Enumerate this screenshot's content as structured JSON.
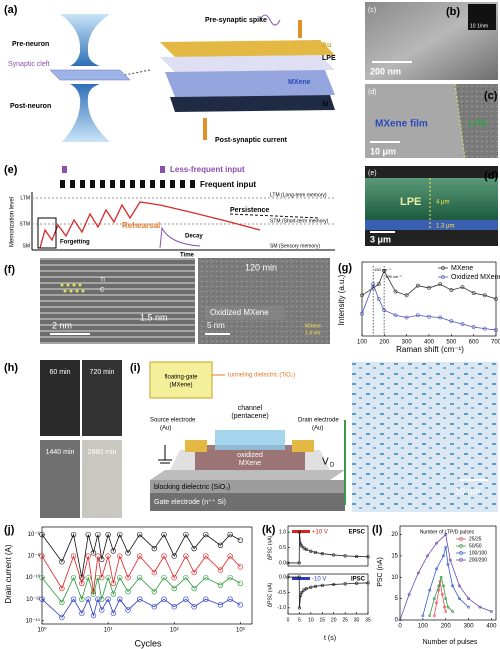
{
  "panel_labels": {
    "a": "(a)",
    "b": "(b)",
    "c": "(c)",
    "d": "(d)",
    "e": "(e)",
    "f": "(f)",
    "g": "(g)",
    "h": "(h)",
    "i": "(i)",
    "j": "(j)",
    "k": "(k)",
    "l": "(l)"
  },
  "a": {
    "pre_neuron": "Pre-neuron",
    "synaptic_cleft": "Synaptic cleft",
    "post_neuron": "Post-neuron",
    "pre_spike": "Pre-synaptic spike",
    "au": "Au",
    "lpe": "LPE",
    "mxene": "MXene",
    "si": "Si",
    "post_current": "Post-synaptic current"
  },
  "b": {
    "sub": "(c)",
    "scale": "200 nm",
    "fft": "10 1/nm"
  },
  "c": {
    "sub": "(d)",
    "film": "MXene film",
    "lpe": "LPE",
    "scale": "10 μm"
  },
  "d": {
    "sub": "(e)",
    "lpe": "LPE",
    "thick_lpe": "4 μm",
    "thick_mx": "1.3 μm",
    "scale": "3 μm"
  },
  "e": {
    "less": "Less-frequent input",
    "frequent": "Frequent input",
    "ylabel": "Memorization level",
    "levels": [
      "LTM",
      "STM",
      "SM"
    ],
    "ltm": "LTM (Long-term memory)",
    "stm": "STM (Short-term memory)",
    "sm": "SM (Sensory memory)",
    "persistence": "Persistence",
    "rehearsal": "Rehearsal",
    "forgetting": "Forgetting",
    "decay": "Decay",
    "time": "Time"
  },
  "f": {
    "ti": "Ti",
    "c": "C",
    "spacing1": "1.5 nm",
    "scale1": "2 nm",
    "time": "120 min",
    "oxidized": "Oxidized MXene",
    "scale2": "5 nm",
    "mxene": "MXene",
    "spacing2": "1.4 nm"
  },
  "g": {
    "type": "line",
    "markers": true,
    "xlabel": "Raman shift (cm⁻¹)",
    "ylabel": "Intensity (a.u.)",
    "xlim": [
      100,
      700
    ],
    "xticks": [
      100,
      200,
      300,
      400,
      500,
      600,
      700
    ],
    "ylim": [
      0,
      1
    ],
    "legend": "upper right",
    "x": [
      100,
      150,
      175,
      199,
      250,
      300,
      350,
      400,
      450,
      500,
      550,
      600,
      650,
      700
    ],
    "series": [
      {
        "name": "MXene",
        "color": "#333333",
        "values": [
          0.55,
          0.65,
          0.7,
          0.88,
          0.6,
          0.55,
          0.68,
          0.65,
          0.7,
          0.62,
          0.66,
          0.58,
          0.55,
          0.5
        ]
      },
      {
        "name": "Oxidized MXene",
        "color": "#4a55b8",
        "values": [
          0.3,
          0.7,
          0.5,
          0.35,
          0.28,
          0.25,
          0.28,
          0.26,
          0.25,
          0.2,
          0.16,
          0.12,
          0.1,
          0.08
        ]
      }
    ],
    "peaks": [
      {
        "x": 150,
        "label": "150 cm⁻¹"
      },
      {
        "x": 199,
        "label": "199 cm⁻¹"
      }
    ]
  },
  "h": {
    "times": [
      "60 min",
      "720 min",
      "1440 min",
      "2880 min"
    ]
  },
  "i": {
    "floating_gate": [
      "floating-gate",
      "(MXene)"
    ],
    "tunneling": "tunneling dielectric (TiO₂)",
    "channel": [
      "channel",
      "(pentacene)"
    ],
    "source": [
      "Source electrode",
      "(Au)"
    ],
    "drain": [
      "Drain electrode",
      "(Au)"
    ],
    "oxidized": [
      "oxidized",
      "MXene"
    ],
    "vd": "V",
    "vd_sub": "D",
    "blocking": "blocking dielectric (SiO₂)",
    "gate": "Gate electrode (n⁺⁺ Si)",
    "scale": "10 μm"
  },
  "j": {
    "type": "line",
    "markers": true,
    "xlog": true,
    "ylog": true,
    "xlabel": "Cycles",
    "ylabel": "Drain current (A)",
    "xlim": [
      1,
      1500
    ],
    "ylim": [
      5e-15,
      5e-06
    ],
    "xticks": [
      {
        "value": 1,
        "label": "10⁰"
      },
      {
        "value": 10,
        "label": "10¹"
      },
      {
        "value": 100,
        "label": "10²"
      },
      {
        "value": 1000,
        "label": "10³"
      }
    ],
    "yticks": [
      {
        "value": 1e-14,
        "label": "10⁻¹⁴"
      },
      {
        "value": 1e-12,
        "label": "10⁻¹²"
      },
      {
        "value": 1e-10,
        "label": "10⁻¹⁰"
      },
      {
        "value": 1e-08,
        "label": "10⁻⁸"
      },
      {
        "value": 1e-06,
        "label": "10⁻⁶"
      }
    ],
    "x": [
      1,
      2,
      3,
      4,
      5,
      6,
      7,
      8,
      10,
      12,
      15,
      20,
      30,
      50,
      70,
      100,
      150,
      200,
      300,
      500,
      700,
      1000
    ],
    "series": [
      {
        "color": "#111111",
        "values": [
          1e-06,
          3e-09,
          1e-06,
          1e-10,
          1e-06,
          2e-08,
          1e-06,
          5e-09,
          1e-06,
          3e-08,
          1e-06,
          2e-08,
          1e-06,
          5e-08,
          1e-06,
          1e-08,
          1e-06,
          5e-08,
          1e-06,
          1e-07,
          1e-06,
          3e-07
        ]
      },
      {
        "color": "#e02020",
        "values": [
          1e-08,
          1e-11,
          1e-08,
          3e-11,
          1e-08,
          5e-12,
          1e-08,
          1e-10,
          1e-08,
          3e-11,
          1e-08,
          1e-10,
          1e-08,
          3e-10,
          1e-08,
          1e-10,
          1e-08,
          3e-10,
          1e-08,
          5e-10,
          1e-08,
          1e-09
        ]
      },
      {
        "color": "#2a9a3a",
        "values": [
          1e-10,
          5e-13,
          1e-10,
          1e-12,
          1e-10,
          3e-12,
          1e-10,
          1e-12,
          1e-10,
          3e-12,
          1e-10,
          5e-12,
          1e-10,
          5e-12,
          1e-10,
          1e-11,
          1e-10,
          1e-11,
          1e-10,
          2e-11,
          1e-10,
          3e-11
        ]
      },
      {
        "color": "#2a3ac8",
        "values": [
          1e-12,
          2e-14,
          1e-12,
          5e-14,
          1e-12,
          3e-14,
          1e-12,
          1e-13,
          1e-12,
          5e-14,
          1e-12,
          1e-13,
          1e-12,
          2e-13,
          1e-12,
          2e-13,
          1e-12,
          2e-13,
          1e-12,
          3e-13,
          1e-12,
          3e-13
        ]
      }
    ]
  },
  "k": {
    "xlabel": "t (s)",
    "epsc": {
      "type": "line",
      "markers": true,
      "label": "EPSC",
      "pulse": "+10 V",
      "ylabel": "ΔPSC (nA)",
      "xlim": [
        0,
        35
      ],
      "ylim": [
        -0.1,
        1.2
      ],
      "yticks": [
        {
          "value": 0,
          "label": "0.0"
        },
        0.5,
        {
          "value": 1,
          "label": "1.0"
        }
      ],
      "x": [
        0,
        4.9,
        5,
        5.5,
        6,
        7,
        8,
        10,
        12,
        15,
        20,
        25,
        30,
        35
      ],
      "series": [
        {
          "color": "#222222",
          "values": [
            0,
            0,
            1.0,
            0.62,
            0.55,
            0.48,
            0.44,
            0.38,
            0.34,
            0.3,
            0.26,
            0.23,
            0.21,
            0.2
          ]
        }
      ]
    },
    "ipsc": {
      "type": "line",
      "markers": true,
      "label": "IPSC",
      "pulse": "-10 V",
      "ylabel": "ΔPSC (nA)",
      "xlim": [
        0,
        35
      ],
      "ylim": [
        -1.2,
        0.1
      ],
      "xticks": [
        0,
        5,
        10,
        15,
        20,
        25,
        30,
        35
      ],
      "yticks": [
        {
          "value": 0,
          "label": "0.0"
        },
        -0.5,
        {
          "value": -1,
          "label": "-1.0"
        }
      ],
      "x": [
        0,
        4.9,
        5,
        5.5,
        6,
        7,
        8,
        10,
        12,
        15,
        20,
        25,
        30,
        35
      ],
      "series": [
        {
          "color": "#222222",
          "values": [
            0,
            0,
            -1.0,
            -0.6,
            -0.5,
            -0.42,
            -0.38,
            -0.33,
            -0.3,
            -0.27,
            -0.24,
            -0.22,
            -0.2,
            -0.19
          ]
        }
      ]
    }
  },
  "l": {
    "type": "line",
    "markers": true,
    "xlabel": "Number of pulses",
    "ylabel": "PSC (nA)",
    "legend_title": "Number of LTP/D pulses",
    "legend": "upper right",
    "xlim": [
      0,
      420
    ],
    "ylim": [
      0,
      22
    ],
    "xticks": [
      0,
      100,
      200,
      300,
      400
    ],
    "yticks": [
      0,
      5,
      10,
      15,
      20
    ],
    "series": [
      {
        "name": "25/25",
        "color": "#e0505a",
        "x": [
          150,
          160,
          170,
          175,
          185,
          195,
          200
        ],
        "values": [
          1,
          4,
          7,
          9,
          6,
          3,
          2
        ]
      },
      {
        "name": "50/50",
        "color": "#3a9a4a",
        "x": [
          130,
          150,
          170,
          180,
          190,
          200,
          210,
          230
        ],
        "values": [
          1,
          5,
          8,
          10,
          8,
          5,
          3,
          2
        ]
      },
      {
        "name": "100/100",
        "color": "#3a5fcf",
        "x": [
          100,
          130,
          160,
          190,
          200,
          210,
          230,
          260,
          300
        ],
        "values": [
          1,
          7,
          12,
          15,
          17,
          13,
          8,
          5,
          3
        ]
      },
      {
        "name": "200/200",
        "color": "#6a4ab0",
        "x": [
          0,
          40,
          80,
          120,
          160,
          200,
          220,
          260,
          300,
          350,
          400
        ],
        "values": [
          0,
          6,
          11,
          15,
          18,
          20,
          14,
          8,
          5,
          3,
          2
        ]
      }
    ]
  }
}
